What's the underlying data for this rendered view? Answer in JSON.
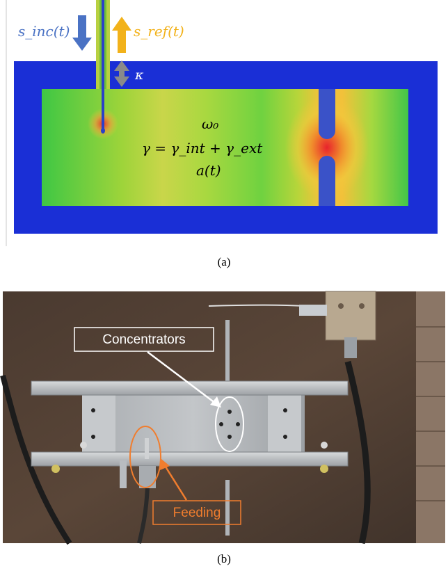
{
  "panel_a": {
    "incident_label": "s_inc(t)",
    "reflected_label": "s_ref(t)",
    "coupling_label": "κ",
    "frequency_label": "ω₀",
    "loss_label": "γ = γ_int + γ_ext",
    "amplitude_label": "a(t)",
    "caption": "(a)",
    "colors": {
      "incident": "#4a72c4",
      "reflected": "#f2b21a",
      "coupling": "#808080",
      "frame": "#1a2fd6"
    }
  },
  "panel_b": {
    "concentrators_label": "Concentrators",
    "feeding_label": "Feeding",
    "caption": "(b)",
    "colors": {
      "concentrators": "#ffffff",
      "feeding": "#f07d2e"
    }
  }
}
